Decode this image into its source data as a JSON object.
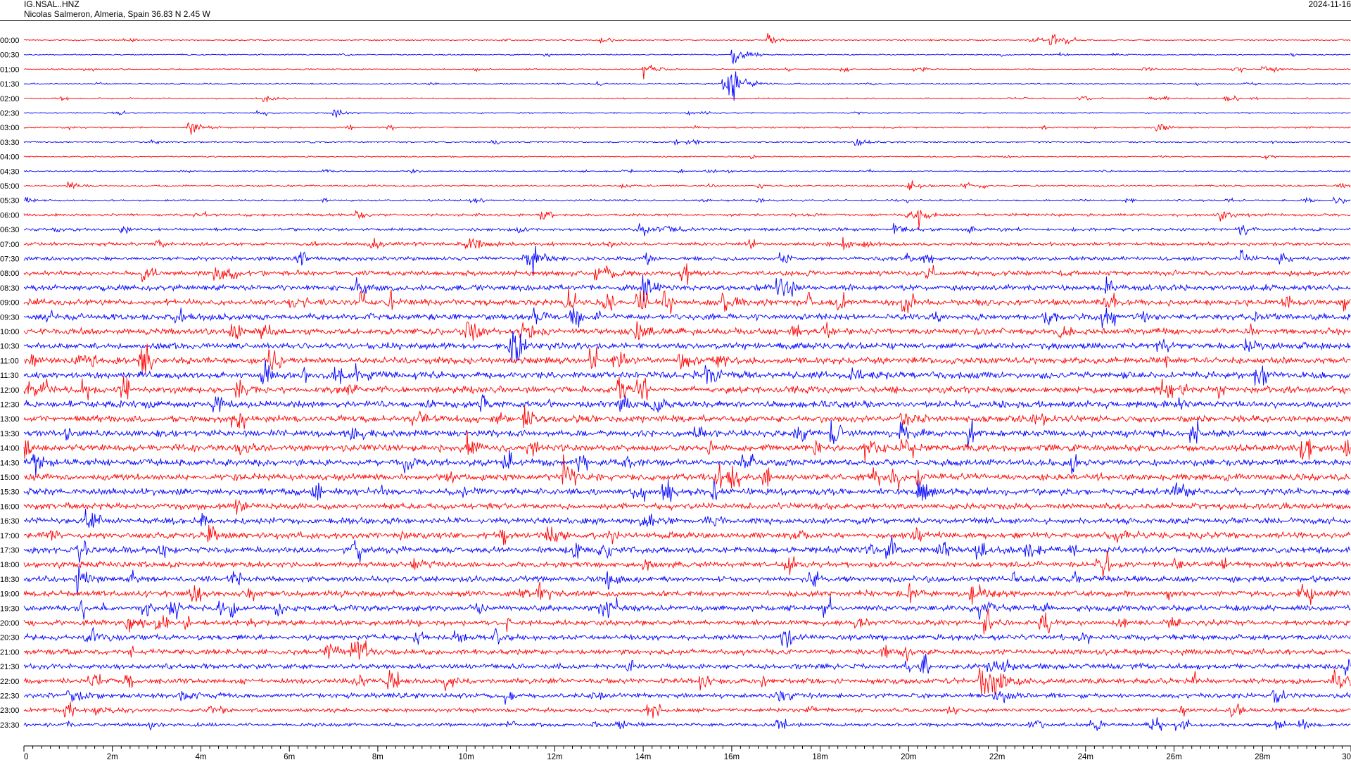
{
  "header": {
    "station": "IG.NSAL..HNZ",
    "location": "Nicolas Salmeron, Almeria, Spain  36.83 N 2.45 W",
    "date": "2024-11-16"
  },
  "colors": {
    "even_trace": "#ff0000",
    "odd_trace": "#0000ff",
    "axis": "#000000"
  },
  "chart_data": {
    "type": "line",
    "title": "IG.NSAL..HNZ",
    "subtitle": "Nicolas Salmeron, Almeria, Spain  36.83 N 2.45 W",
    "xlabel": "",
    "ylabel": "",
    "x_unit": "minutes",
    "xlim": [
      0,
      30
    ],
    "x_ticks": [
      "0",
      "2m",
      "4m",
      "6m",
      "8m",
      "10m",
      "12m",
      "14m",
      "16m",
      "18m",
      "20m",
      "22m",
      "24m",
      "26m",
      "28m",
      "30"
    ],
    "row_labels": [
      "00:00",
      "00:30",
      "01:00",
      "01:30",
      "02:00",
      "02:30",
      "03:00",
      "03:30",
      "04:00",
      "04:30",
      "05:00",
      "05:30",
      "06:00",
      "06:30",
      "07:00",
      "07:30",
      "08:00",
      "08:30",
      "09:00",
      "09:30",
      "10:00",
      "10:30",
      "11:00",
      "11:30",
      "12:00",
      "12:30",
      "13:00",
      "13:30",
      "14:00",
      "14:30",
      "15:00",
      "15:30",
      "16:00",
      "16:30",
      "17:00",
      "17:30",
      "18:00",
      "18:30",
      "19:00",
      "19:30",
      "20:00",
      "20:30",
      "21:00",
      "21:30",
      "22:00",
      "22:30",
      "23:00",
      "23:30"
    ],
    "noise_level": [
      0.6,
      0.6,
      0.6,
      0.6,
      0.6,
      0.6,
      0.7,
      0.7,
      0.6,
      0.6,
      0.8,
      0.8,
      1.2,
      1.4,
      1.5,
      1.8,
      2.2,
      2.6,
      2.8,
      2.8,
      2.8,
      2.8,
      3.0,
      3.0,
      3.0,
      3.0,
      3.0,
      3.0,
      3.0,
      3.0,
      3.0,
      3.0,
      2.8,
      2.8,
      2.8,
      2.8,
      2.6,
      2.6,
      2.6,
      2.6,
      2.4,
      2.4,
      2.4,
      2.4,
      2.4,
      2.2,
      1.8,
      1.6
    ],
    "events": [
      {
        "row": 0,
        "minute": 16.8,
        "amp": 6
      },
      {
        "row": 0,
        "minute": 23.2,
        "amp": 8
      },
      {
        "row": 1,
        "minute": 16.0,
        "amp": 10
      },
      {
        "row": 2,
        "minute": 14.0,
        "amp": 8
      },
      {
        "row": 2,
        "minute": 28.0,
        "amp": 6
      },
      {
        "row": 3,
        "minute": 15.8,
        "amp": 22
      },
      {
        "row": 3,
        "minute": 16.0,
        "amp": 16
      },
      {
        "row": 4,
        "minute": 5.4,
        "amp": 5
      },
      {
        "row": 5,
        "minute": 7.0,
        "amp": 6
      },
      {
        "row": 6,
        "minute": 3.7,
        "amp": 10
      },
      {
        "row": 6,
        "minute": 25.6,
        "amp": 5
      },
      {
        "row": 7,
        "minute": 18.8,
        "amp": 5
      },
      {
        "row": 10,
        "minute": 1.0,
        "amp": 5
      },
      {
        "row": 10,
        "minute": 20.0,
        "amp": 5
      },
      {
        "row": 12,
        "minute": 20.2,
        "amp": 9
      },
      {
        "row": 12,
        "minute": 27.0,
        "amp": 6
      },
      {
        "row": 13,
        "minute": 13.9,
        "amp": 10
      },
      {
        "row": 13,
        "minute": 14.5,
        "amp": 10
      },
      {
        "row": 13,
        "minute": 19.6,
        "amp": 7
      },
      {
        "row": 14,
        "minute": 10.0,
        "amp": 12
      },
      {
        "row": 14,
        "minute": 7.8,
        "amp": 8
      },
      {
        "row": 14,
        "minute": 18.5,
        "amp": 8
      },
      {
        "row": 15,
        "minute": 11.5,
        "amp": 16
      },
      {
        "row": 15,
        "minute": 27.5,
        "amp": 8
      },
      {
        "row": 16,
        "minute": 4.3,
        "amp": 9
      },
      {
        "row": 16,
        "minute": 12.9,
        "amp": 10
      },
      {
        "row": 17,
        "minute": 14.0,
        "amp": 14
      },
      {
        "row": 17,
        "minute": 17.0,
        "amp": 11
      },
      {
        "row": 17,
        "minute": 7.5,
        "amp": 8
      },
      {
        "row": 18,
        "minute": 15.8,
        "amp": 13
      },
      {
        "row": 18,
        "minute": 6.0,
        "amp": 7
      },
      {
        "row": 18,
        "minute": 30.0,
        "amp": 8
      },
      {
        "row": 19,
        "minute": 11.5,
        "amp": 9
      },
      {
        "row": 20,
        "minute": 10.0,
        "amp": 10
      },
      {
        "row": 20,
        "minute": 11.2,
        "amp": 9
      },
      {
        "row": 20,
        "minute": 13.8,
        "amp": 12
      },
      {
        "row": 21,
        "minute": 11.0,
        "amp": 15
      },
      {
        "row": 21,
        "minute": 27.6,
        "amp": 9
      },
      {
        "row": 22,
        "minute": 14.8,
        "amp": 10
      },
      {
        "row": 22,
        "minute": 1.0,
        "amp": 7
      },
      {
        "row": 23,
        "minute": 7.5,
        "amp": 9
      },
      {
        "row": 23,
        "minute": 15.4,
        "amp": 12
      },
      {
        "row": 24,
        "minute": 13.4,
        "amp": 14
      },
      {
        "row": 24,
        "minute": 27.0,
        "amp": 8
      },
      {
        "row": 24,
        "minute": 0.1,
        "amp": 9
      },
      {
        "row": 25,
        "minute": 14.2,
        "amp": 12
      },
      {
        "row": 25,
        "minute": 13.4,
        "amp": 10
      },
      {
        "row": 26,
        "minute": 11.3,
        "amp": 14
      },
      {
        "row": 26,
        "minute": 19.8,
        "amp": 10
      },
      {
        "row": 27,
        "minute": 19.8,
        "amp": 13
      },
      {
        "row": 27,
        "minute": 7.4,
        "amp": 8
      },
      {
        "row": 28,
        "minute": 10.0,
        "amp": 14
      },
      {
        "row": 28,
        "minute": 19.0,
        "amp": 10
      },
      {
        "row": 28,
        "minute": 4.8,
        "amp": 9
      },
      {
        "row": 28,
        "minute": 29.8,
        "amp": 12
      },
      {
        "row": 29,
        "minute": 0.2,
        "amp": 13
      },
      {
        "row": 29,
        "minute": 8.6,
        "amp": 8
      },
      {
        "row": 29,
        "minute": 13.6,
        "amp": 9
      },
      {
        "row": 30,
        "minute": 12.2,
        "amp": 16
      },
      {
        "row": 31,
        "minute": 20.2,
        "amp": 15
      },
      {
        "row": 31,
        "minute": 26.0,
        "amp": 8
      },
      {
        "row": 32,
        "minute": 4.8,
        "amp": 10
      },
      {
        "row": 33,
        "minute": 1.4,
        "amp": 14
      },
      {
        "row": 33,
        "minute": 15.4,
        "amp": 8
      },
      {
        "row": 34,
        "minute": 11.8,
        "amp": 12
      },
      {
        "row": 34,
        "minute": 24.6,
        "amp": 7
      },
      {
        "row": 35,
        "minute": 22.6,
        "amp": 14
      },
      {
        "row": 36,
        "minute": 8.8,
        "amp": 8
      },
      {
        "row": 36,
        "minute": 14.0,
        "amp": 6
      },
      {
        "row": 37,
        "minute": 1.2,
        "amp": 16
      },
      {
        "row": 37,
        "minute": 13.2,
        "amp": 8
      },
      {
        "row": 38,
        "minute": 11.6,
        "amp": 14
      },
      {
        "row": 38,
        "minute": 21.4,
        "amp": 11
      },
      {
        "row": 38,
        "minute": 20.0,
        "amp": 8
      },
      {
        "row": 39,
        "minute": 21.6,
        "amp": 13
      },
      {
        "row": 39,
        "minute": 13.0,
        "amp": 7
      },
      {
        "row": 40,
        "minute": 2.6,
        "amp": 8
      },
      {
        "row": 40,
        "minute": 3.0,
        "amp": 7
      },
      {
        "row": 41,
        "minute": 1.4,
        "amp": 16
      },
      {
        "row": 41,
        "minute": 10.6,
        "amp": 8
      },
      {
        "row": 42,
        "minute": 6.8,
        "amp": 12
      },
      {
        "row": 42,
        "minute": 7.4,
        "amp": 14
      },
      {
        "row": 42,
        "minute": 19.4,
        "amp": 9
      },
      {
        "row": 43,
        "minute": 29.8,
        "amp": 8
      },
      {
        "row": 43,
        "minute": 21.8,
        "amp": 10
      },
      {
        "row": 44,
        "minute": 21.6,
        "amp": 18
      },
      {
        "row": 44,
        "minute": 21.9,
        "amp": 20
      },
      {
        "row": 44,
        "minute": 29.6,
        "amp": 12
      },
      {
        "row": 45,
        "minute": 1.0,
        "amp": 13
      },
      {
        "row": 45,
        "minute": 3.5,
        "amp": 8
      },
      {
        "row": 45,
        "minute": 21.9,
        "amp": 16
      },
      {
        "row": 45,
        "minute": 17.0,
        "amp": 7
      },
      {
        "row": 46,
        "minute": 4.2,
        "amp": 6
      },
      {
        "row": 46,
        "minute": 1.6,
        "amp": 6
      },
      {
        "row": 47,
        "minute": 13.4,
        "amp": 5
      },
      {
        "row": 47,
        "minute": 28.8,
        "amp": 7
      }
    ]
  }
}
